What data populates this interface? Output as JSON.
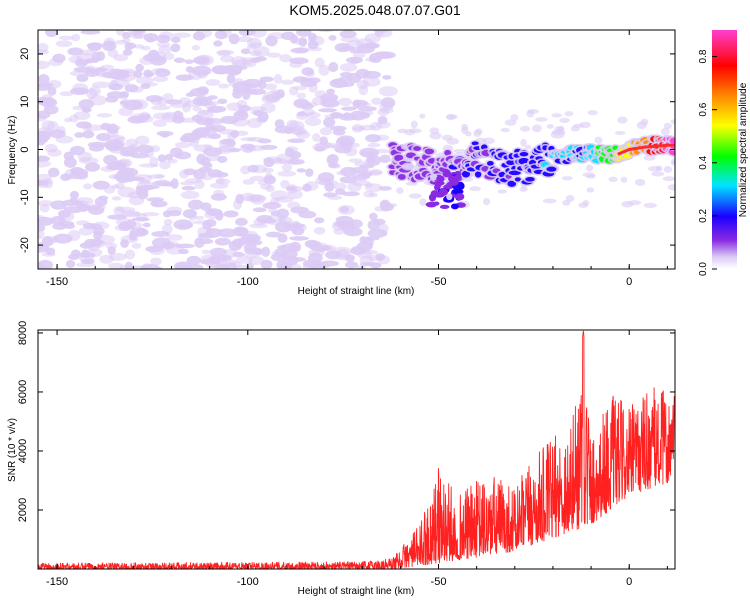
{
  "title": "KOM5.2025.048.07.07.G01",
  "chart_data": [
    {
      "type": "heatmap",
      "xlabel": "Height of straight line (km)",
      "ylabel": "Frequency (Hz)",
      "xlim": [
        -155,
        12
      ],
      "ylim": [
        -25,
        25
      ],
      "xticks": [
        -150,
        -100,
        -50,
        0
      ],
      "yticks": [
        -20,
        -10,
        0,
        10,
        20
      ],
      "colorbar": {
        "label": "Normalized spectral amplitude",
        "range": [
          0.0,
          0.9
        ],
        "ticks": [
          "0.0",
          "0.2",
          "0.4",
          "0.6",
          "0.8"
        ],
        "colors": [
          "#ffffff",
          "#dccbf5",
          "#8a2be2",
          "#1a00ff",
          "#00e5ff",
          "#00ff00",
          "#ffff00",
          "#ff8c00",
          "#ff0000",
          "#ff3fd0"
        ]
      },
      "noise_region_x": [
        -155,
        -63
      ],
      "signal_track": [
        {
          "x": -62,
          "y": -2
        },
        {
          "x": -55,
          "y": -3
        },
        {
          "x": -50,
          "y": -4
        },
        {
          "x": -45,
          "y": -3
        },
        {
          "x": -40,
          "y": -2
        },
        {
          "x": -35,
          "y": -3
        },
        {
          "x": -30,
          "y": -4
        },
        {
          "x": -25,
          "y": -3
        },
        {
          "x": -20,
          "y": -2
        },
        {
          "x": -15,
          "y": -1
        },
        {
          "x": -10,
          "y": -1
        },
        {
          "x": -5,
          "y": -1
        },
        {
          "x": 0,
          "y": 0
        },
        {
          "x": 5,
          "y": 1
        },
        {
          "x": 12,
          "y": 1
        }
      ],
      "peak_amplitude": 0.9
    },
    {
      "type": "line",
      "xlabel": "Height of straight line (km)",
      "ylabel": "SNR (10 * v/v)",
      "xlim": [
        -155,
        12
      ],
      "ylim": [
        0,
        8100
      ],
      "xticks": [
        -150,
        -100,
        -50,
        0
      ],
      "yticks": [
        2000,
        4000,
        6000,
        8000
      ],
      "series": [
        {
          "color": "#ff2020",
          "envelope": [
            {
              "x": -155,
              "y": 200
            },
            {
              "x": -70,
              "y": 250
            },
            {
              "x": -62,
              "y": 400
            },
            {
              "x": -55,
              "y": 1500
            },
            {
              "x": -50,
              "y": 3500
            },
            {
              "x": -45,
              "y": 2500
            },
            {
              "x": -40,
              "y": 3000
            },
            {
              "x": -35,
              "y": 3200
            },
            {
              "x": -30,
              "y": 2800
            },
            {
              "x": -25,
              "y": 3800
            },
            {
              "x": -20,
              "y": 4500
            },
            {
              "x": -15,
              "y": 5000
            },
            {
              "x": -12,
              "y": 8100
            },
            {
              "x": -10,
              "y": 4500
            },
            {
              "x": -5,
              "y": 6000
            },
            {
              "x": 0,
              "y": 5500
            },
            {
              "x": 5,
              "y": 6200
            },
            {
              "x": 12,
              "y": 6000
            }
          ],
          "floor": [
            {
              "x": -155,
              "y": 0
            },
            {
              "x": -62,
              "y": 0
            },
            {
              "x": -50,
              "y": 200
            },
            {
              "x": -30,
              "y": 600
            },
            {
              "x": -10,
              "y": 1500
            },
            {
              "x": 0,
              "y": 2500
            },
            {
              "x": 12,
              "y": 3000
            }
          ]
        }
      ]
    }
  ]
}
